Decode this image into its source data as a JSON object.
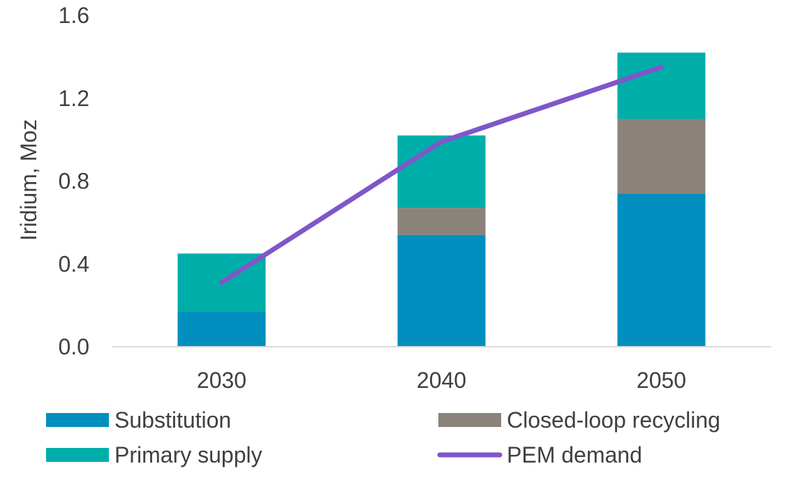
{
  "chart_data": {
    "type": "bar",
    "stacked": true,
    "title": "",
    "xlabel": "",
    "ylabel": "Iridium, Moz",
    "ylim": [
      0,
      1.6
    ],
    "yticks": [
      "0.0",
      "0.4",
      "0.8",
      "1.2",
      "1.6"
    ],
    "categories": [
      "2030",
      "2040",
      "2050"
    ],
    "grid": false,
    "legend_position": "bottom",
    "series": [
      {
        "name": "Substitution",
        "kind": "bar",
        "color": "#008FBE",
        "values": [
          0.17,
          0.54,
          0.74
        ]
      },
      {
        "name": "Closed-loop recycling",
        "kind": "bar",
        "color": "#8B8379",
        "values": [
          0.0,
          0.13,
          0.36
        ]
      },
      {
        "name": "Primary supply",
        "kind": "bar",
        "color": "#00AEA9",
        "values": [
          0.28,
          0.35,
          0.32
        ]
      },
      {
        "name": "PEM demand",
        "kind": "line",
        "color": "#7E57C9",
        "values": [
          0.31,
          0.99,
          1.35
        ]
      }
    ]
  }
}
